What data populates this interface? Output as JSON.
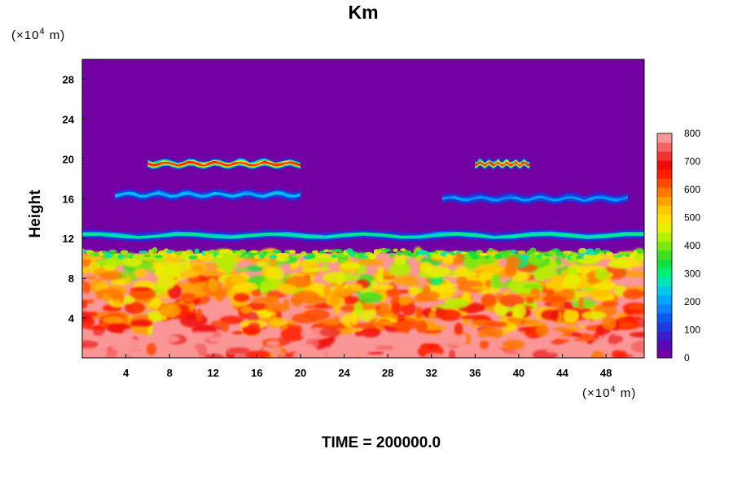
{
  "chart_data": {
    "type": "heatmap",
    "title": "Km",
    "ylabel": "Height",
    "y_unit_prefix": "(×10",
    "x_unit_prefix": "(×10",
    "unit_exp": "4",
    "unit_suffix": " m)",
    "footer": "TIME = 200000.0",
    "xlim": [
      0,
      51.5
    ],
    "ylim": [
      0,
      30
    ],
    "x_ticks": [
      "4",
      "8",
      "12",
      "16",
      "20",
      "24",
      "28",
      "32",
      "36",
      "40",
      "44",
      "48"
    ],
    "y_ticks": [
      "4",
      "8",
      "12",
      "16",
      "20",
      "24",
      "28"
    ],
    "colorbar": {
      "range": [
        0,
        800
      ],
      "labels": [
        "0",
        "100",
        "200",
        "300",
        "400",
        "500",
        "600",
        "700",
        "800"
      ],
      "colors": [
        "#7300a3",
        "#5a0ab4",
        "#3c1ec8",
        "#1e3cdc",
        "#0a5af0",
        "#0a82ff",
        "#00a5ff",
        "#00c8e6",
        "#00e6b4",
        "#00f078",
        "#10e040",
        "#40e020",
        "#78e810",
        "#b4f000",
        "#e6f000",
        "#ffe100",
        "#ffc800",
        "#ffa000",
        "#ff7800",
        "#ff4b00",
        "#ff1e00",
        "#f00a0a",
        "#f03232",
        "#f56464",
        "#fa9696"
      ]
    },
    "background_value": 0,
    "features": [
      {
        "kind": "turbulent_layer",
        "y_range": [
          0,
          10.5
        ],
        "value_range": [
          400,
          800
        ]
      },
      {
        "kind": "band",
        "x": [
          6,
          20
        ],
        "y": 19.5,
        "value": 650
      },
      {
        "kind": "band",
        "x": [
          36,
          41
        ],
        "y": 19.5,
        "value": 650
      },
      {
        "kind": "band",
        "x": [
          3,
          20
        ],
        "y": 16.4,
        "value": 250
      },
      {
        "kind": "band",
        "x": [
          33,
          50
        ],
        "y": 16.0,
        "value": 200
      },
      {
        "kind": "band",
        "x": [
          0,
          51.5
        ],
        "y": 12.3,
        "value": 300
      }
    ]
  }
}
